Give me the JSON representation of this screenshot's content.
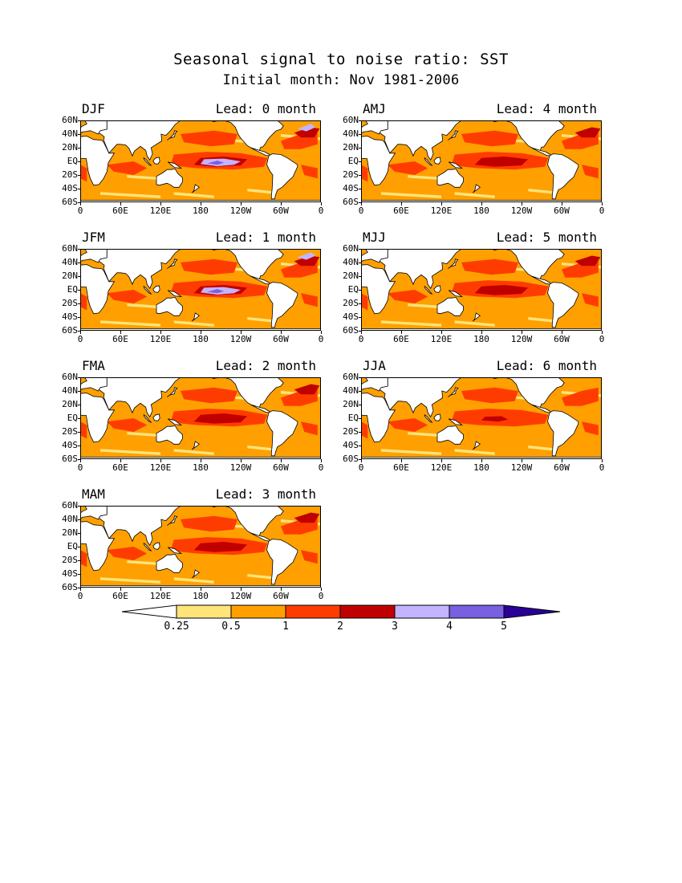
{
  "title": "Seasonal signal to noise ratio: SST",
  "subtitle": "Initial month: Nov 1981-2006",
  "lead_prefix": "Lead:",
  "lead_suffix": "month",
  "panels": [
    {
      "season": "DJF",
      "lead": "Lead: 0 month",
      "lead_value": 0,
      "pacific_max_class": 5
    },
    {
      "season": "JFM",
      "lead": "Lead: 1 month",
      "lead_value": 1,
      "pacific_max_class": 5
    },
    {
      "season": "FMA",
      "lead": "Lead: 2 month",
      "lead_value": 2,
      "pacific_max_class": 4
    },
    {
      "season": "MAM",
      "lead": "Lead: 3 month",
      "lead_value": 3,
      "pacific_max_class": 4
    },
    {
      "season": "AMJ",
      "lead": "Lead: 4 month",
      "lead_value": 4,
      "pacific_max_class": 4
    },
    {
      "season": "MJJ",
      "lead": "Lead: 5 month",
      "lead_value": 5,
      "pacific_max_class": 4
    },
    {
      "season": "JJA",
      "lead": "Lead: 6 month",
      "lead_value": 6,
      "pacific_max_class": 3
    }
  ],
  "lat_labels": [
    "60N",
    "40N",
    "20N",
    "EQ",
    "20S",
    "40S",
    "60S"
  ],
  "lon_labels": [
    "0",
    "60E",
    "120E",
    "180",
    "120W",
    "60W",
    "0"
  ],
  "colorbar": {
    "labels": [
      "0.25",
      "0.5",
      "1",
      "2",
      "3",
      "4",
      "5"
    ],
    "colors": [
      "#ffffff",
      "#ffe47a",
      "#ffa000",
      "#ff3c00",
      "#c00000",
      "#c4b4ff",
      "#7860e0",
      "#2a0096"
    ]
  },
  "colors": {
    "land": "#ffffff",
    "coast": "#000000"
  }
}
